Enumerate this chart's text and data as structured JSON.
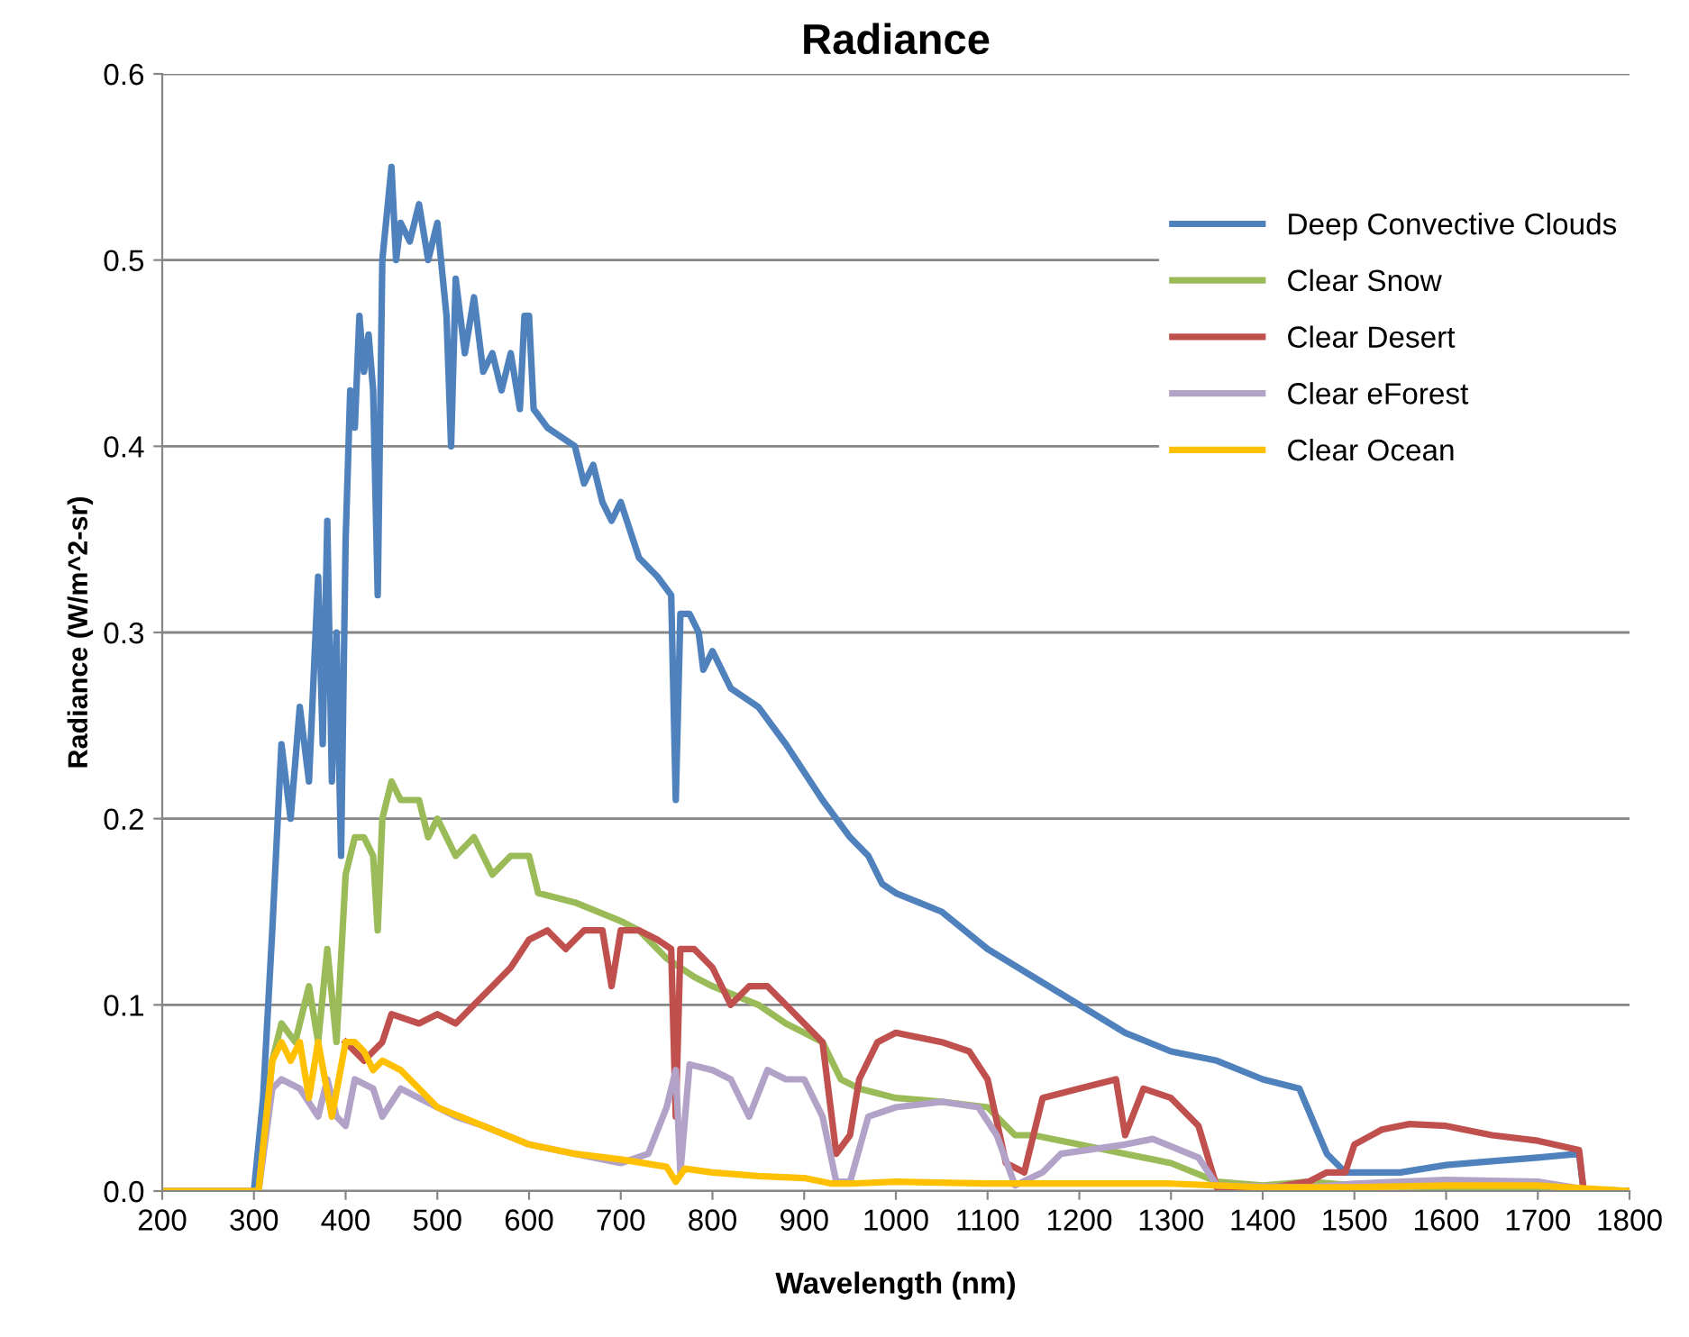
{
  "chart_data": {
    "type": "line",
    "title": "Radiance",
    "xlabel": "Wavelength (nm)",
    "ylabel": "Radiance (W/m^2-sr)",
    "xlim": [
      200,
      1800
    ],
    "xticks": [
      200,
      300,
      400,
      500,
      600,
      700,
      800,
      900,
      1000,
      1100,
      1200,
      1300,
      1400,
      1500,
      1600,
      1700,
      1800
    ],
    "ylim": [
      0,
      0.6
    ],
    "yticks": [
      {
        "value": 0,
        "label": "0.0"
      },
      0.1,
      0.2,
      0.3,
      0.4,
      0.5,
      0.6
    ],
    "grid": "y",
    "legend": "top right",
    "marker": "none",
    "line_style": "solid",
    "series": [
      {
        "name": "Deep Convective Clouds",
        "color": "#4f81bd",
        "x": [
          200,
          300,
          310,
          320,
          330,
          340,
          350,
          360,
          370,
          375,
          380,
          385,
          390,
          395,
          400,
          405,
          410,
          415,
          420,
          425,
          430,
          435,
          440,
          450,
          455,
          460,
          470,
          480,
          490,
          500,
          510,
          515,
          520,
          530,
          540,
          550,
          560,
          570,
          580,
          590,
          595,
          600,
          605,
          620,
          650,
          660,
          670,
          680,
          690,
          700,
          720,
          740,
          755,
          760,
          765,
          775,
          785,
          790,
          800,
          820,
          850,
          880,
          900,
          920,
          950,
          970,
          985,
          1000,
          1050,
          1100,
          1150,
          1200,
          1250,
          1300,
          1350,
          1400,
          1440,
          1470,
          1490,
          1550,
          1600,
          1650,
          1700,
          1745,
          1750,
          1800
        ],
        "values": [
          0,
          0,
          0.05,
          0.14,
          0.24,
          0.2,
          0.26,
          0.22,
          0.33,
          0.24,
          0.36,
          0.22,
          0.3,
          0.18,
          0.35,
          0.43,
          0.41,
          0.47,
          0.44,
          0.46,
          0.43,
          0.32,
          0.5,
          0.55,
          0.5,
          0.52,
          0.51,
          0.53,
          0.5,
          0.52,
          0.47,
          0.4,
          0.49,
          0.45,
          0.48,
          0.44,
          0.45,
          0.43,
          0.45,
          0.42,
          0.47,
          0.47,
          0.42,
          0.41,
          0.4,
          0.38,
          0.39,
          0.37,
          0.36,
          0.37,
          0.34,
          0.33,
          0.32,
          0.21,
          0.31,
          0.31,
          0.3,
          0.28,
          0.29,
          0.27,
          0.26,
          0.24,
          0.225,
          0.21,
          0.19,
          0.18,
          0.165,
          0.16,
          0.15,
          0.13,
          0.115,
          0.1,
          0.085,
          0.075,
          0.07,
          0.06,
          0.055,
          0.02,
          0.01,
          0.01,
          0.014,
          0.016,
          0.018,
          0.02,
          0,
          0
        ]
      },
      {
        "name": "Clear Snow",
        "color": "#9bbb59",
        "x": [
          200,
          305,
          320,
          330,
          345,
          360,
          370,
          380,
          390,
          400,
          410,
          420,
          430,
          435,
          440,
          450,
          460,
          480,
          490,
          500,
          520,
          540,
          560,
          580,
          600,
          610,
          650,
          700,
          720,
          750,
          780,
          800,
          850,
          880,
          900,
          920,
          940,
          960,
          1000,
          1050,
          1100,
          1130,
          1150,
          1200,
          1250,
          1300,
          1350,
          1400,
          1450,
          1500,
          1600,
          1750,
          1800
        ],
        "values": [
          0,
          0,
          0.07,
          0.09,
          0.08,
          0.11,
          0.08,
          0.13,
          0.08,
          0.17,
          0.19,
          0.19,
          0.18,
          0.14,
          0.2,
          0.22,
          0.21,
          0.21,
          0.19,
          0.2,
          0.18,
          0.19,
          0.17,
          0.18,
          0.18,
          0.16,
          0.155,
          0.145,
          0.14,
          0.125,
          0.115,
          0.11,
          0.1,
          0.09,
          0.085,
          0.08,
          0.06,
          0.055,
          0.05,
          0.048,
          0.045,
          0.03,
          0.03,
          0.025,
          0.02,
          0.015,
          0.005,
          0.003,
          0.005,
          0.003,
          0.002,
          0.001,
          0
        ]
      },
      {
        "name": "Clear Desert",
        "color": "#c0504d",
        "x": [
          400,
          420,
          440,
          450,
          480,
          500,
          520,
          540,
          560,
          580,
          600,
          620,
          640,
          660,
          680,
          690,
          700,
          720,
          740,
          755,
          760,
          765,
          780,
          800,
          820,
          840,
          860,
          880,
          900,
          920,
          935,
          950,
          960,
          980,
          1000,
          1050,
          1080,
          1100,
          1120,
          1140,
          1160,
          1200,
          1240,
          1250,
          1270,
          1300,
          1330,
          1350,
          1400,
          1450,
          1470,
          1490,
          1500,
          1530,
          1560,
          1600,
          1650,
          1700,
          1745,
          1750,
          1800
        ],
        "values": [
          0.08,
          0.07,
          0.08,
          0.095,
          0.09,
          0.095,
          0.09,
          0.1,
          0.11,
          0.12,
          0.135,
          0.14,
          0.13,
          0.14,
          0.14,
          0.11,
          0.14,
          0.14,
          0.135,
          0.13,
          0.04,
          0.13,
          0.13,
          0.12,
          0.1,
          0.11,
          0.11,
          0.1,
          0.09,
          0.08,
          0.02,
          0.03,
          0.06,
          0.08,
          0.085,
          0.08,
          0.075,
          0.06,
          0.015,
          0.01,
          0.05,
          0.055,
          0.06,
          0.03,
          0.055,
          0.05,
          0.035,
          0.002,
          0.001,
          0.005,
          0.01,
          0.01,
          0.025,
          0.033,
          0.036,
          0.035,
          0.03,
          0.027,
          0.022,
          0,
          0
        ]
      },
      {
        "name": "Clear eForest",
        "color": "#b2a2c7",
        "x": [
          200,
          305,
          320,
          330,
          350,
          370,
          380,
          390,
          400,
          410,
          430,
          440,
          460,
          480,
          500,
          520,
          550,
          600,
          650,
          700,
          730,
          750,
          760,
          765,
          775,
          800,
          820,
          840,
          860,
          880,
          900,
          920,
          935,
          950,
          970,
          1000,
          1050,
          1090,
          1110,
          1130,
          1160,
          1180,
          1250,
          1280,
          1330,
          1350,
          1450,
          1500,
          1600,
          1700,
          1750,
          1800
        ],
        "values": [
          0,
          0,
          0.055,
          0.06,
          0.055,
          0.04,
          0.06,
          0.04,
          0.035,
          0.06,
          0.055,
          0.04,
          0.055,
          0.05,
          0.045,
          0.04,
          0.035,
          0.025,
          0.02,
          0.015,
          0.02,
          0.045,
          0.065,
          0.01,
          0.068,
          0.065,
          0.06,
          0.04,
          0.065,
          0.06,
          0.06,
          0.04,
          0.005,
          0.005,
          0.04,
          0.045,
          0.048,
          0.045,
          0.03,
          0.003,
          0.01,
          0.02,
          0.025,
          0.028,
          0.018,
          0.003,
          0.002,
          0.004,
          0.006,
          0.005,
          0.001,
          0
        ]
      },
      {
        "name": "Clear Ocean",
        "color": "#ffc000",
        "x": [
          200,
          305,
          320,
          330,
          340,
          350,
          360,
          370,
          385,
          400,
          410,
          420,
          430,
          440,
          460,
          480,
          500,
          550,
          600,
          650,
          700,
          750,
          760,
          770,
          800,
          850,
          900,
          930,
          950,
          1000,
          1100,
          1200,
          1300,
          1400,
          1500,
          1600,
          1700,
          1800
        ],
        "values": [
          0,
          0,
          0.07,
          0.08,
          0.07,
          0.08,
          0.05,
          0.08,
          0.04,
          0.08,
          0.08,
          0.075,
          0.065,
          0.07,
          0.065,
          0.055,
          0.045,
          0.035,
          0.025,
          0.02,
          0.017,
          0.013,
          0.005,
          0.012,
          0.01,
          0.008,
          0.007,
          0.004,
          0.004,
          0.005,
          0.004,
          0.004,
          0.004,
          0.002,
          0.002,
          0.003,
          0.003,
          0
        ]
      }
    ]
  }
}
